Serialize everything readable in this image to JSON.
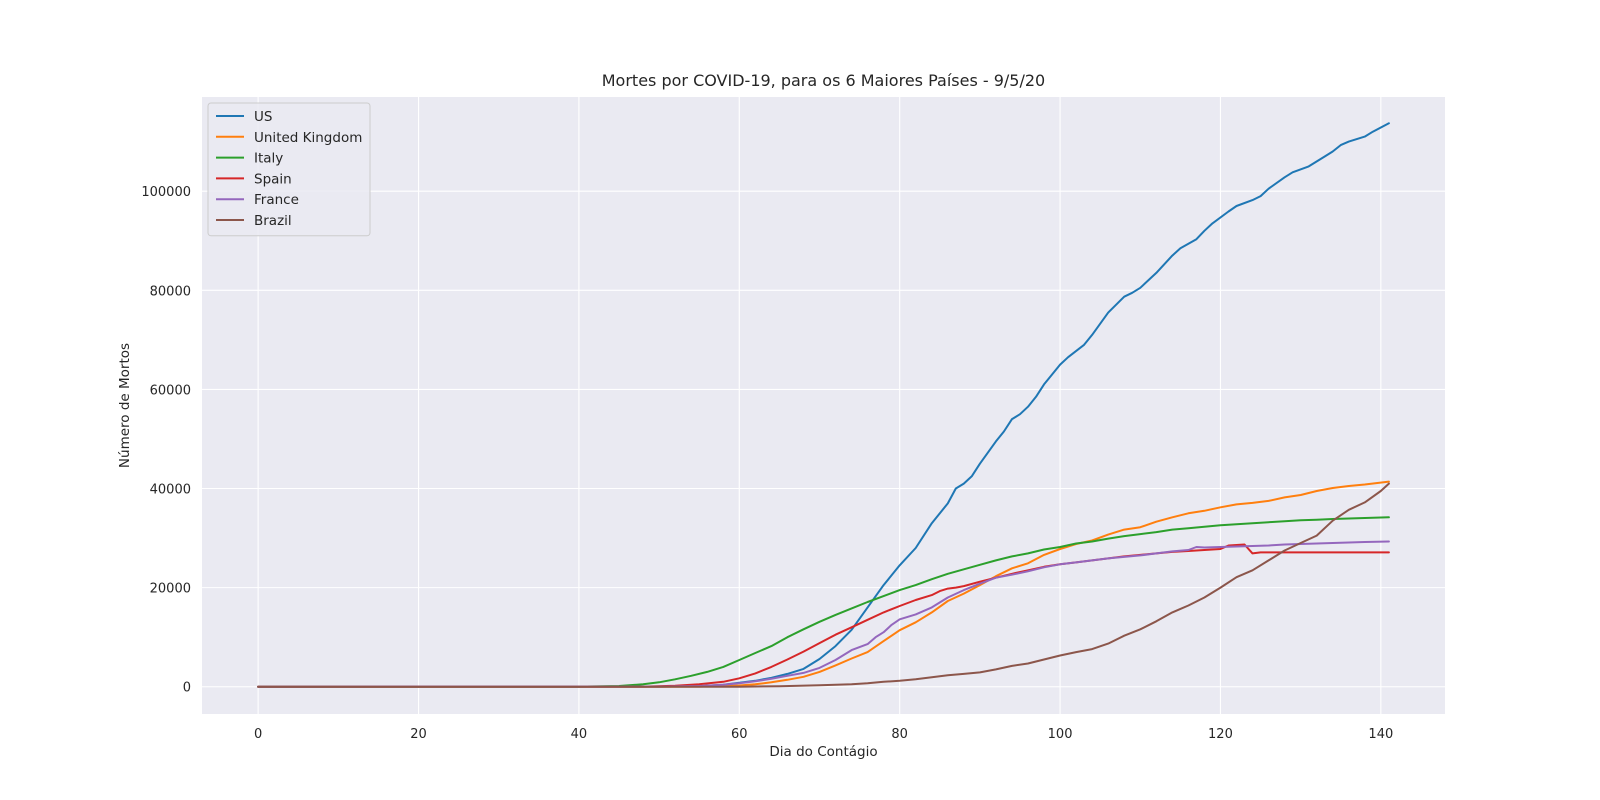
{
  "chart_data": {
    "type": "line",
    "title": "Mortes por COVID-19, para os 6 Maiores Países - 9/5/20",
    "xlabel": "Dia do Contágio",
    "ylabel": "Número de Mortos",
    "xlim": [
      -7,
      148
    ],
    "ylim": [
      -5500,
      119000
    ],
    "xticks": [
      0,
      20,
      40,
      60,
      80,
      100,
      120,
      140
    ],
    "yticks": [
      0,
      20000,
      40000,
      60000,
      80000,
      100000
    ],
    "grid": true,
    "legend_position": "top-left",
    "background": "#eaeaf2",
    "series": [
      {
        "name": "US",
        "color": "#1f77b4",
        "points": [
          [
            0,
            0
          ],
          [
            40,
            0
          ],
          [
            50,
            20
          ],
          [
            55,
            100
          ],
          [
            58,
            400
          ],
          [
            60,
            800
          ],
          [
            62,
            1200
          ],
          [
            64,
            1800
          ],
          [
            66,
            2600
          ],
          [
            68,
            3600
          ],
          [
            70,
            5600
          ],
          [
            72,
            8200
          ],
          [
            74,
            11500
          ],
          [
            76,
            16000
          ],
          [
            78,
            20500
          ],
          [
            80,
            24500
          ],
          [
            82,
            28000
          ],
          [
            84,
            33000
          ],
          [
            86,
            37000
          ],
          [
            87,
            40000
          ],
          [
            88,
            41000
          ],
          [
            89,
            42500
          ],
          [
            90,
            45000
          ],
          [
            92,
            49500
          ],
          [
            93,
            51500
          ],
          [
            94,
            54000
          ],
          [
            95,
            55000
          ],
          [
            96,
            56500
          ],
          [
            97,
            58500
          ],
          [
            98,
            61000
          ],
          [
            100,
            65000
          ],
          [
            101,
            66500
          ],
          [
            103,
            69000
          ],
          [
            104,
            71000
          ],
          [
            106,
            75500
          ],
          [
            108,
            78700
          ],
          [
            109,
            79500
          ],
          [
            110,
            80500
          ],
          [
            112,
            83500
          ],
          [
            114,
            87000
          ],
          [
            115,
            88500
          ],
          [
            117,
            90300
          ],
          [
            118,
            92000
          ],
          [
            119,
            93500
          ],
          [
            121,
            95900
          ],
          [
            122,
            97000
          ],
          [
            124,
            98200
          ],
          [
            125,
            99000
          ],
          [
            126,
            100500
          ],
          [
            128,
            102800
          ],
          [
            129,
            103800
          ],
          [
            131,
            105000
          ],
          [
            133,
            107000
          ],
          [
            134,
            108000
          ],
          [
            135,
            109300
          ],
          [
            136,
            110000
          ],
          [
            138,
            111000
          ],
          [
            139,
            112000
          ],
          [
            141,
            113700
          ]
        ]
      },
      {
        "name": "United Kingdom",
        "color": "#ff7f0e",
        "points": [
          [
            0,
            0
          ],
          [
            50,
            0
          ],
          [
            55,
            30
          ],
          [
            60,
            250
          ],
          [
            62,
            500
          ],
          [
            64,
            900
          ],
          [
            66,
            1400
          ],
          [
            68,
            2000
          ],
          [
            70,
            3000
          ],
          [
            72,
            4300
          ],
          [
            74,
            5700
          ],
          [
            76,
            7000
          ],
          [
            78,
            9200
          ],
          [
            80,
            11400
          ],
          [
            82,
            13000
          ],
          [
            84,
            15000
          ],
          [
            86,
            17300
          ],
          [
            88,
            18800
          ],
          [
            90,
            20500
          ],
          [
            92,
            22300
          ],
          [
            94,
            23900
          ],
          [
            96,
            24900
          ],
          [
            98,
            26600
          ],
          [
            100,
            27800
          ],
          [
            102,
            28800
          ],
          [
            104,
            29500
          ],
          [
            106,
            30700
          ],
          [
            108,
            31700
          ],
          [
            110,
            32200
          ],
          [
            112,
            33300
          ],
          [
            114,
            34200
          ],
          [
            116,
            35000
          ],
          [
            118,
            35500
          ],
          [
            120,
            36200
          ],
          [
            122,
            36800
          ],
          [
            124,
            37100
          ],
          [
            126,
            37500
          ],
          [
            128,
            38200
          ],
          [
            130,
            38700
          ],
          [
            132,
            39500
          ],
          [
            134,
            40100
          ],
          [
            136,
            40500
          ],
          [
            138,
            40800
          ],
          [
            141,
            41400
          ]
        ]
      },
      {
        "name": "Italy",
        "color": "#2ca02c",
        "points": [
          [
            0,
            0
          ],
          [
            40,
            20
          ],
          [
            45,
            150
          ],
          [
            48,
            500
          ],
          [
            50,
            900
          ],
          [
            52,
            1500
          ],
          [
            54,
            2200
          ],
          [
            56,
            3000
          ],
          [
            58,
            4000
          ],
          [
            60,
            5400
          ],
          [
            62,
            6800
          ],
          [
            64,
            8200
          ],
          [
            66,
            10000
          ],
          [
            68,
            11600
          ],
          [
            70,
            13100
          ],
          [
            72,
            14500
          ],
          [
            74,
            15800
          ],
          [
            76,
            17100
          ],
          [
            78,
            18300
          ],
          [
            80,
            19500
          ],
          [
            82,
            20500
          ],
          [
            84,
            21700
          ],
          [
            86,
            22800
          ],
          [
            88,
            23700
          ],
          [
            90,
            24600
          ],
          [
            92,
            25500
          ],
          [
            94,
            26300
          ],
          [
            96,
            26900
          ],
          [
            98,
            27700
          ],
          [
            100,
            28200
          ],
          [
            102,
            28900
          ],
          [
            104,
            29300
          ],
          [
            106,
            29900
          ],
          [
            108,
            30400
          ],
          [
            110,
            30800
          ],
          [
            112,
            31200
          ],
          [
            114,
            31700
          ],
          [
            116,
            32000
          ],
          [
            118,
            32300
          ],
          [
            120,
            32600
          ],
          [
            122,
            32800
          ],
          [
            124,
            33000
          ],
          [
            126,
            33200
          ],
          [
            128,
            33400
          ],
          [
            130,
            33600
          ],
          [
            132,
            33700
          ],
          [
            134,
            33850
          ],
          [
            136,
            33950
          ],
          [
            138,
            34050
          ],
          [
            141,
            34200
          ]
        ]
      },
      {
        "name": "Spain",
        "color": "#d62728",
        "points": [
          [
            0,
            0
          ],
          [
            48,
            20
          ],
          [
            52,
            200
          ],
          [
            55,
            500
          ],
          [
            58,
            1000
          ],
          [
            60,
            1700
          ],
          [
            62,
            2700
          ],
          [
            64,
            4000
          ],
          [
            66,
            5500
          ],
          [
            68,
            7100
          ],
          [
            70,
            8800
          ],
          [
            72,
            10500
          ],
          [
            74,
            12000
          ],
          [
            76,
            13500
          ],
          [
            78,
            15000
          ],
          [
            80,
            16300
          ],
          [
            82,
            17500
          ],
          [
            84,
            18500
          ],
          [
            85,
            19300
          ],
          [
            86,
            19800
          ],
          [
            87,
            20000
          ],
          [
            88,
            20300
          ],
          [
            90,
            21200
          ],
          [
            92,
            22000
          ],
          [
            94,
            22800
          ],
          [
            96,
            23500
          ],
          [
            98,
            24200
          ],
          [
            100,
            24700
          ],
          [
            102,
            25100
          ],
          [
            104,
            25500
          ],
          [
            106,
            25900
          ],
          [
            108,
            26300
          ],
          [
            110,
            26600
          ],
          [
            112,
            26900
          ],
          [
            114,
            27200
          ],
          [
            116,
            27400
          ],
          [
            118,
            27600
          ],
          [
            120,
            27800
          ],
          [
            121,
            28500
          ],
          [
            123,
            28700
          ],
          [
            124,
            26900
          ],
          [
            125,
            27100
          ],
          [
            130,
            27100
          ],
          [
            141,
            27100
          ]
        ]
      },
      {
        "name": "France",
        "color": "#9467bd",
        "points": [
          [
            0,
            0
          ],
          [
            50,
            20
          ],
          [
            55,
            150
          ],
          [
            58,
            400
          ],
          [
            60,
            700
          ],
          [
            62,
            1100
          ],
          [
            64,
            1600
          ],
          [
            66,
            2200
          ],
          [
            68,
            2800
          ],
          [
            70,
            3800
          ],
          [
            72,
            5400
          ],
          [
            74,
            7400
          ],
          [
            75,
            8000
          ],
          [
            76,
            8600
          ],
          [
            77,
            10000
          ],
          [
            78,
            11000
          ],
          [
            79,
            12500
          ],
          [
            80,
            13600
          ],
          [
            82,
            14600
          ],
          [
            84,
            16000
          ],
          [
            86,
            18000
          ],
          [
            88,
            19500
          ],
          [
            90,
            20800
          ],
          [
            92,
            22000
          ],
          [
            94,
            22600
          ],
          [
            96,
            23300
          ],
          [
            98,
            24100
          ],
          [
            100,
            24700
          ],
          [
            102,
            25100
          ],
          [
            104,
            25500
          ],
          [
            106,
            25900
          ],
          [
            108,
            26200
          ],
          [
            110,
            26500
          ],
          [
            112,
            26900
          ],
          [
            114,
            27300
          ],
          [
            116,
            27600
          ],
          [
            117,
            28200
          ],
          [
            118,
            28100
          ],
          [
            120,
            28200
          ],
          [
            122,
            28300
          ],
          [
            124,
            28400
          ],
          [
            126,
            28500
          ],
          [
            128,
            28700
          ],
          [
            130,
            28800
          ],
          [
            132,
            28900
          ],
          [
            134,
            29000
          ],
          [
            136,
            29100
          ],
          [
            138,
            29200
          ],
          [
            141,
            29300
          ]
        ]
      },
      {
        "name": "Brazil",
        "color": "#8c564b",
        "points": [
          [
            0,
            0
          ],
          [
            60,
            10
          ],
          [
            65,
            100
          ],
          [
            70,
            300
          ],
          [
            74,
            500
          ],
          [
            76,
            700
          ],
          [
            78,
            1000
          ],
          [
            80,
            1200
          ],
          [
            82,
            1500
          ],
          [
            84,
            1900
          ],
          [
            86,
            2300
          ],
          [
            88,
            2600
          ],
          [
            90,
            2900
          ],
          [
            92,
            3500
          ],
          [
            94,
            4200
          ],
          [
            96,
            4700
          ],
          [
            98,
            5500
          ],
          [
            100,
            6300
          ],
          [
            102,
            7000
          ],
          [
            104,
            7600
          ],
          [
            106,
            8700
          ],
          [
            108,
            10300
          ],
          [
            110,
            11600
          ],
          [
            112,
            13200
          ],
          [
            114,
            15000
          ],
          [
            115,
            15700
          ],
          [
            116,
            16400
          ],
          [
            118,
            18000
          ],
          [
            120,
            20000
          ],
          [
            122,
            22100
          ],
          [
            124,
            23500
          ],
          [
            126,
            25500
          ],
          [
            128,
            27500
          ],
          [
            130,
            29000
          ],
          [
            132,
            30500
          ],
          [
            134,
            33500
          ],
          [
            136,
            35700
          ],
          [
            138,
            37200
          ],
          [
            140,
            39500
          ],
          [
            141,
            41000
          ]
        ]
      }
    ]
  }
}
